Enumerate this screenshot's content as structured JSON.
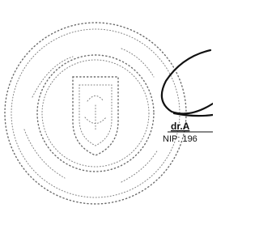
{
  "document": {
    "signatory_name": "dr.A",
    "signatory_id": "NIP: 196"
  }
}
